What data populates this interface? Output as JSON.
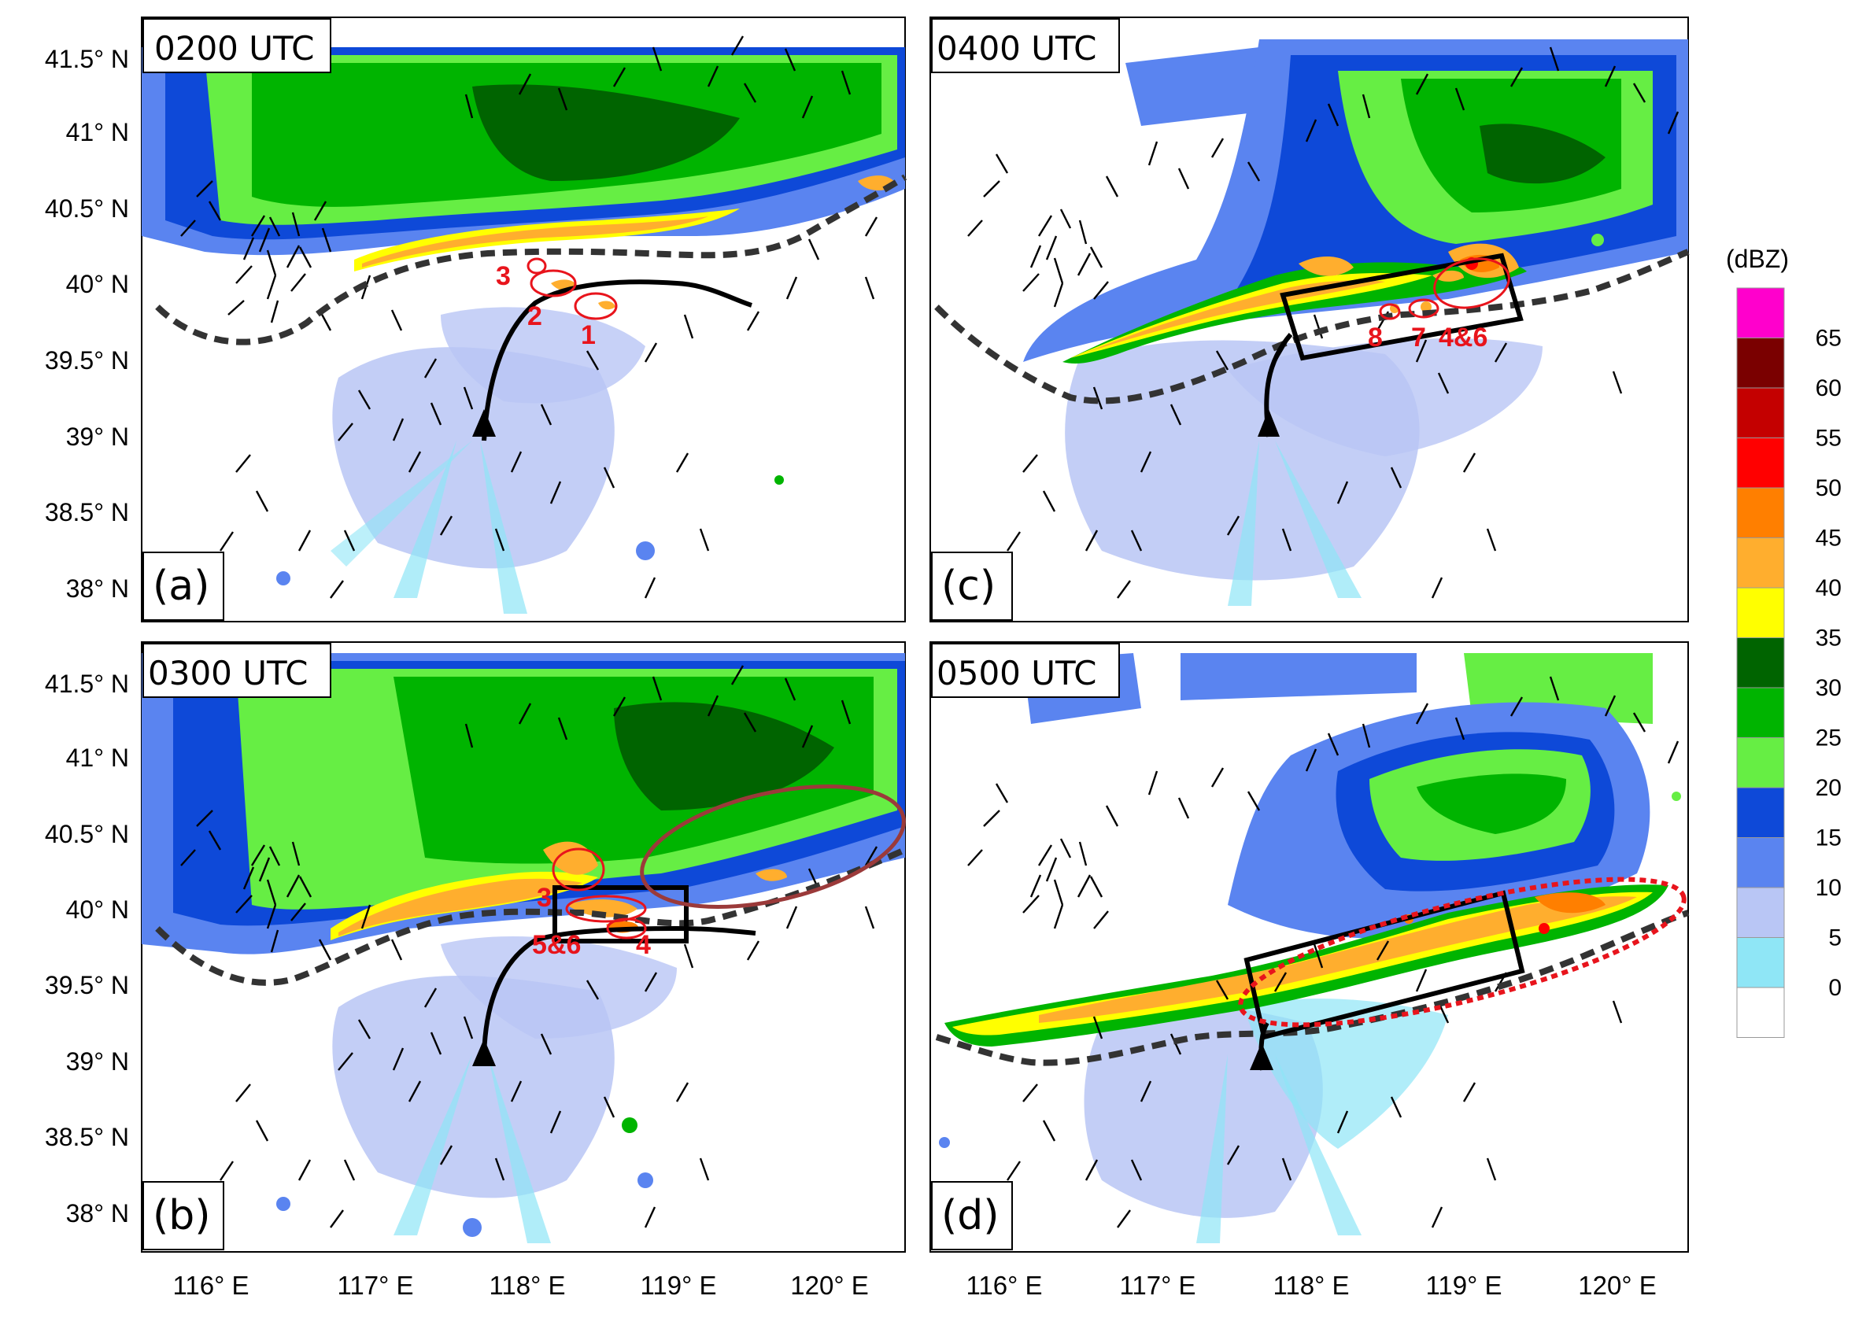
{
  "panels": [
    {
      "id": "a",
      "time": "0200 UTC",
      "letter": "(a)",
      "cells": [
        {
          "text": "1"
        },
        {
          "text": "2"
        },
        {
          "text": "3"
        }
      ]
    },
    {
      "id": "c",
      "time": "0400 UTC",
      "letter": "(c)",
      "cells": [
        {
          "text": "8"
        },
        {
          "text": "7"
        },
        {
          "text": "4&6"
        }
      ]
    },
    {
      "id": "b",
      "time": "0300 UTC",
      "letter": "(b)",
      "cells": [
        {
          "text": "3"
        },
        {
          "text": "5&6"
        },
        {
          "text": "4"
        }
      ]
    },
    {
      "id": "d",
      "time": "0500 UTC",
      "letter": "(d)",
      "cells": []
    }
  ],
  "y_ticks": [
    "41.5° N",
    "41° N",
    "40.5° N",
    "40° N",
    "39.5° N",
    "39° N",
    "38.5° N",
    "38° N"
  ],
  "x_ticks": [
    "116° E",
    "117° E",
    "118° E",
    "119° E",
    "120° E"
  ],
  "colorbar": {
    "title": "(dBZ)",
    "levels": [
      {
        "label": "65",
        "color": "#ff00cc"
      },
      {
        "label": "60",
        "color": "#7a0000"
      },
      {
        "label": "55",
        "color": "#c40000"
      },
      {
        "label": "50",
        "color": "#ff0000"
      },
      {
        "label": "45",
        "color": "#ff7f00"
      },
      {
        "label": "40",
        "color": "#ffae2e"
      },
      {
        "label": "35",
        "color": "#ffff00"
      },
      {
        "label": "30",
        "color": "#006400"
      },
      {
        "label": "25",
        "color": "#00b400"
      },
      {
        "label": "20",
        "color": "#66ee44"
      },
      {
        "label": "15",
        "color": "#0e49d8"
      },
      {
        "label": "10",
        "color": "#5a84f0"
      },
      {
        "label": "5",
        "color": "#b9c6f5"
      },
      {
        "label": "0",
        "color": "#8fe6f6"
      },
      {
        "label": "",
        "color": "#ffffff"
      }
    ]
  },
  "colors": {
    "cell_marker": "#e8141c",
    "convergence_ellipse": "#9b3a3a",
    "front": "#333333"
  }
}
